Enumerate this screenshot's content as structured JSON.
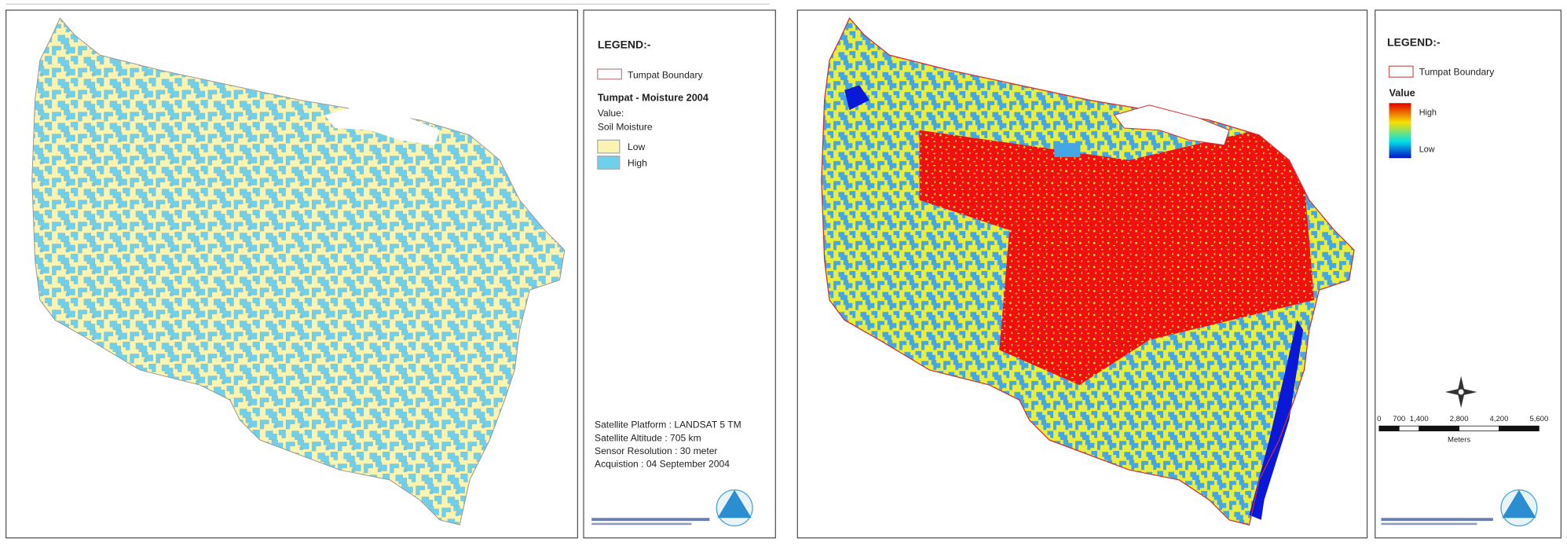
{
  "left_panel": {
    "legend": {
      "title": "LEGEND:-",
      "boundary": "Tumpat Boundary",
      "layer_title": "Tumpat - Moisture 2004",
      "value_label": "Value:",
      "field": "Soil Moisture",
      "classes": [
        "Low",
        "High"
      ]
    },
    "metadata": [
      "Satellite Platform : LANDSAT 5 TM",
      "Satellite Altitude : 705 km",
      "Sensor Resolution : 30 meter",
      "Acquistion : 04 September 2004"
    ]
  },
  "right_panel": {
    "legend": {
      "title": "LEGEND:-",
      "boundary": "Tumpat Boundary",
      "value_label": "Value",
      "high": "High",
      "low": "Low"
    },
    "scale_bar": {
      "ticks": [
        "0",
        "700",
        "1,400",
        "2,800",
        "4,200",
        "5,600"
      ],
      "unit": "Meters"
    }
  }
}
